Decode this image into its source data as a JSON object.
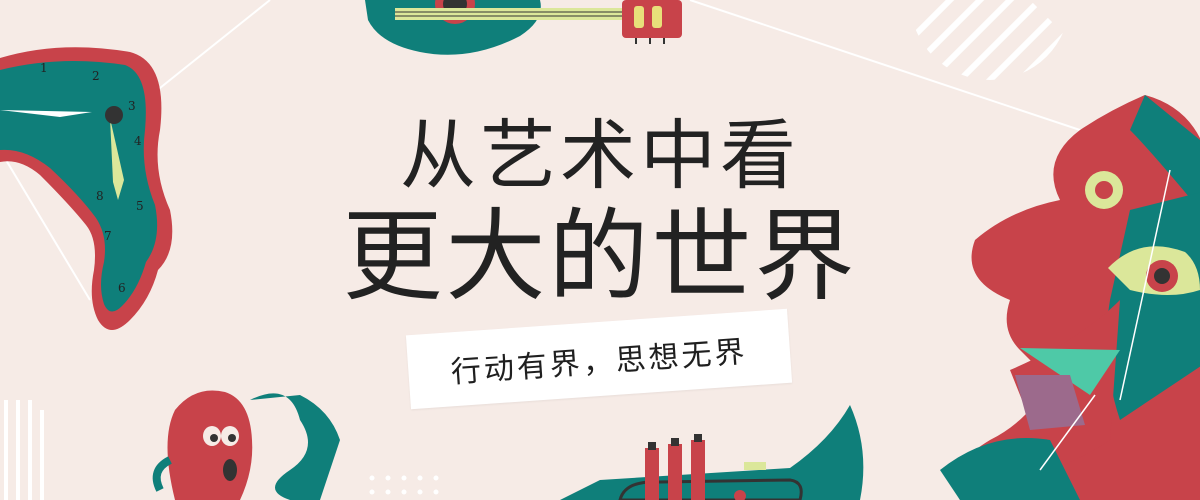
{
  "banner": {
    "title_line1": "从艺术中看",
    "title_line2": "更大的世界",
    "slogan": "行动有界，思想无界"
  },
  "clock": {
    "numerals": [
      "1",
      "2",
      "3",
      "4",
      "5",
      "6",
      "7",
      "8"
    ]
  },
  "colors": {
    "background": "#f6ebe6",
    "teal": "#0f7f7a",
    "red": "#c8434a",
    "lime": "#dbe79a",
    "mint": "#4ec9a7",
    "plum": "#9c6a8c",
    "title_text": "#222222"
  },
  "icons": [
    "melting-clock-icon",
    "guitar-icon",
    "picasso-face-icon",
    "scream-mask-icon",
    "trumpet-icon"
  ]
}
